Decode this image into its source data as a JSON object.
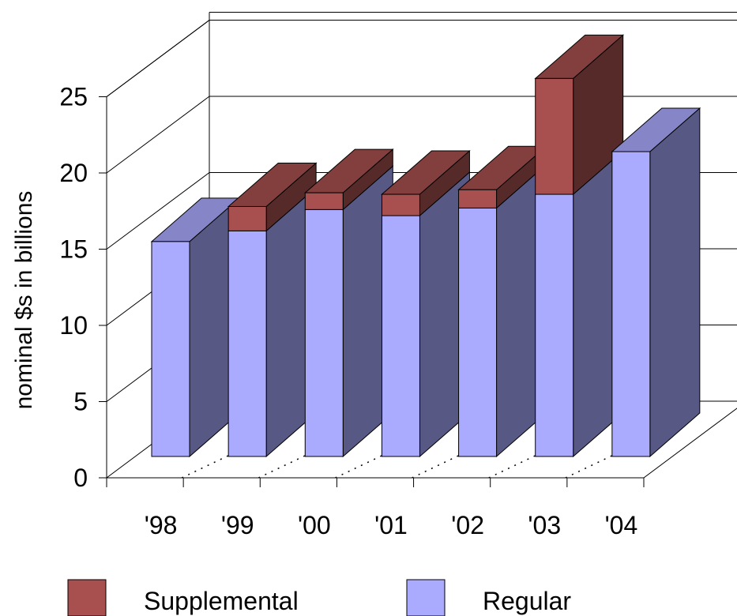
{
  "chart_data": {
    "type": "bar",
    "stacked": true,
    "three_d": true,
    "categories": [
      "'98",
      "'99",
      "'00",
      "'01",
      "'02",
      "'03",
      "'04"
    ],
    "series": [
      {
        "name": "Regular",
        "values": [
          14.1,
          14.8,
          16.2,
          15.8,
          16.3,
          17.2,
          20.0
        ],
        "color": "#aaaaff"
      },
      {
        "name": "Supplemental",
        "values": [
          0,
          1.6,
          1.1,
          1.4,
          1.2,
          7.6,
          0
        ],
        "color": "#a85050"
      }
    ],
    "ylabel": "nominal $s in billions",
    "xlabel": "",
    "ylim": [
      0,
      25
    ],
    "yticks": [
      0,
      5,
      10,
      15,
      20,
      25
    ],
    "grid": true,
    "legend_position": "bottom"
  }
}
